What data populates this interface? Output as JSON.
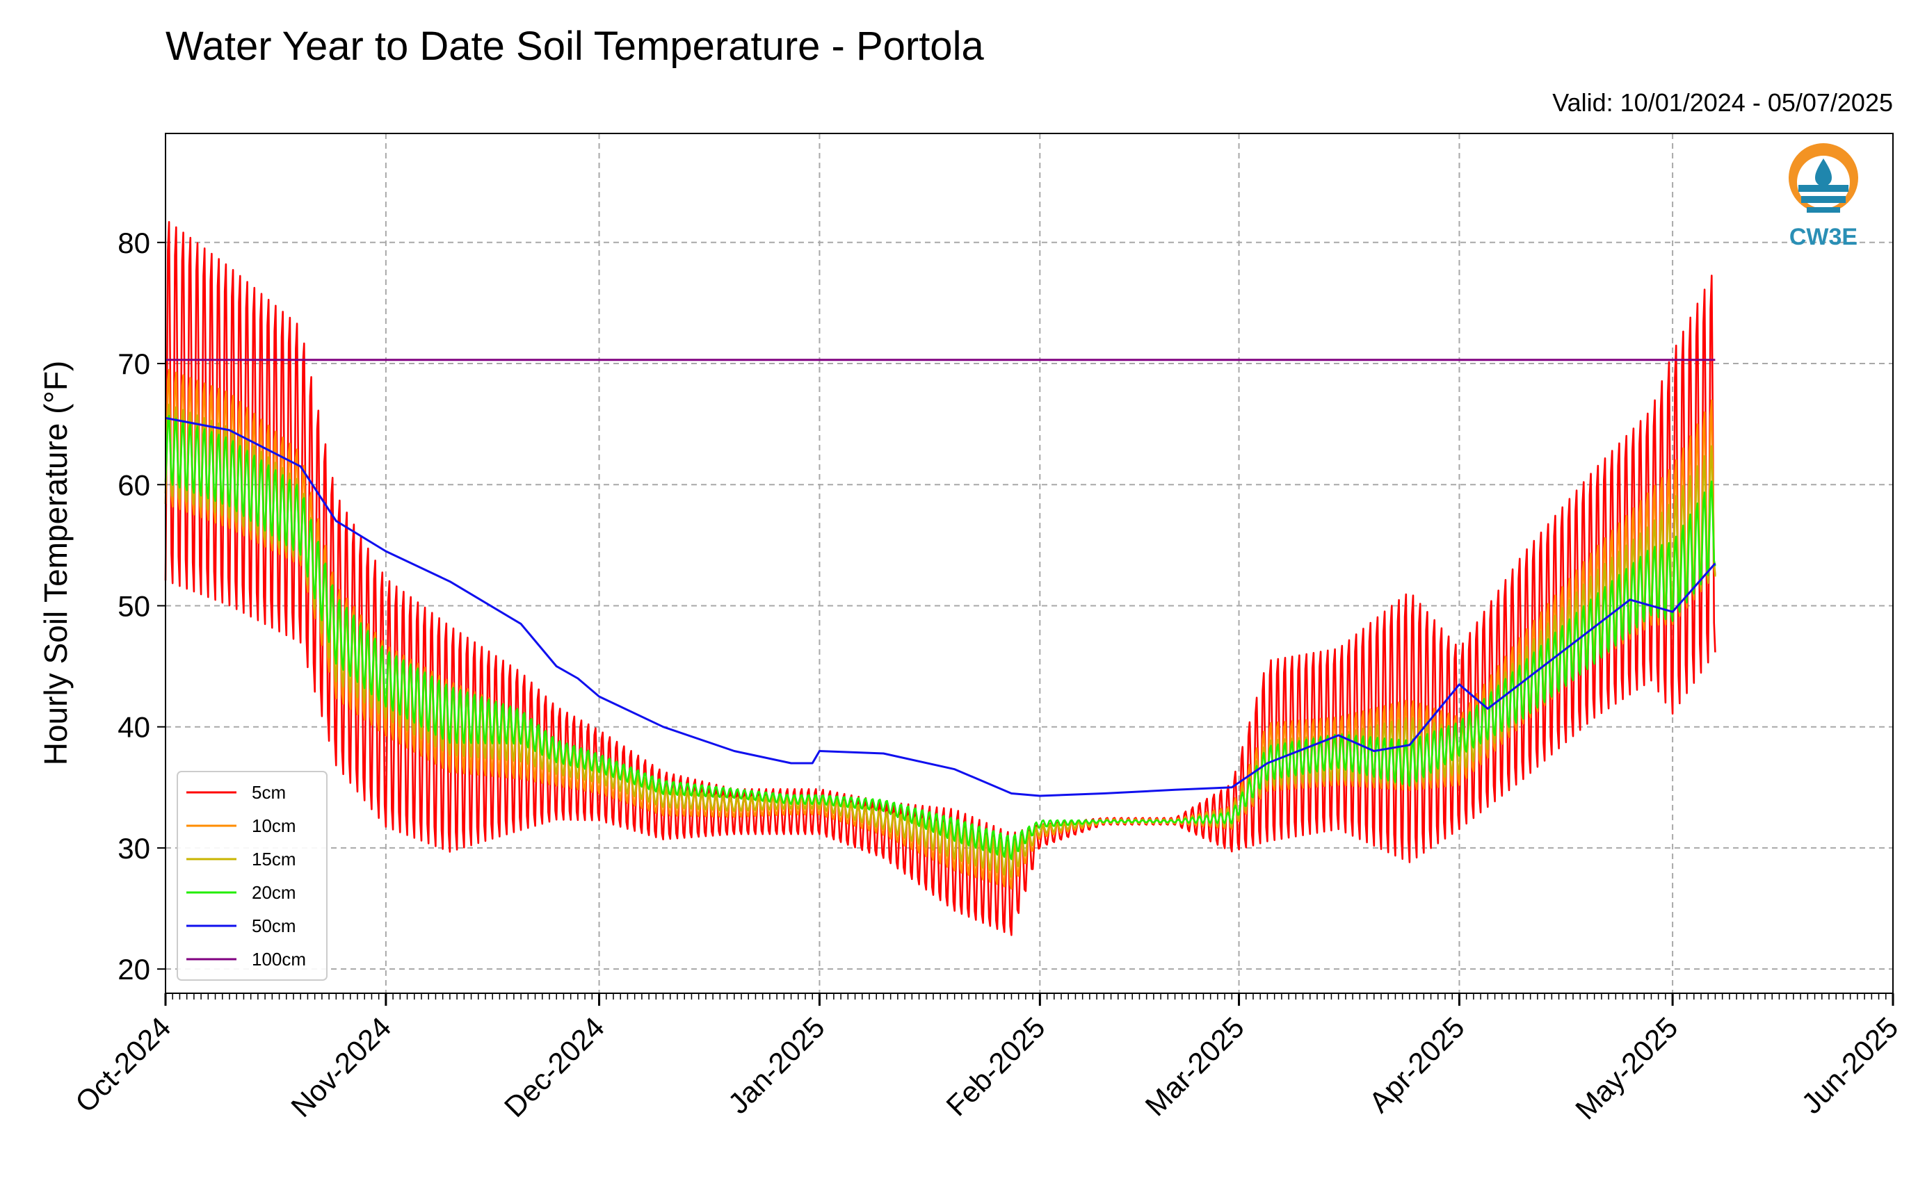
{
  "chart_data": {
    "type": "line",
    "title": "Water Year to Date Soil Temperature - Portola",
    "subtitle": "Valid: 10/01/2024 - 05/07/2025",
    "xlabel": "",
    "ylabel": "Hourly Soil Temperature (°F)",
    "ylim": [
      18,
      89
    ],
    "xlim": [
      "2024-10-01",
      "2025-06-01"
    ],
    "yticks": [
      20,
      30,
      40,
      50,
      60,
      70,
      80
    ],
    "xtick_labels": [
      "Oct-2024",
      "Nov-2024",
      "Dec-2024",
      "Jan-2025",
      "Feb-2025",
      "Mar-2025",
      "Apr-2025",
      "May-2025",
      "Jun-2025"
    ],
    "grid": true,
    "legend_position": "lower-left",
    "logo_text": "CW3E",
    "series": [
      {
        "name": "5cm",
        "color": "#ff0000",
        "kind": "shallow",
        "x": [
          "2024-10-01",
          "2024-10-10",
          "2024-10-20",
          "2024-10-25",
          "2024-11-01",
          "2024-11-10",
          "2024-11-20",
          "2024-11-25",
          "2024-12-01",
          "2024-12-10",
          "2024-12-20",
          "2024-12-28",
          "2025-01-01",
          "2025-01-10",
          "2025-01-20",
          "2025-01-28",
          "2025-02-01",
          "2025-02-10",
          "2025-02-20",
          "2025-02-28",
          "2025-03-05",
          "2025-03-15",
          "2025-03-25",
          "2025-04-01",
          "2025-04-10",
          "2025-04-20",
          "2025-04-28",
          "2025-05-01",
          "2025-05-07"
        ],
        "mid": [
          67,
          64,
          60,
          48,
          42,
          39,
          38,
          37,
          36,
          33.5,
          33,
          33,
          33,
          31.5,
          29,
          27,
          31,
          32.2,
          32.2,
          32.5,
          38,
          39,
          40,
          39,
          45,
          51,
          55,
          56,
          62
        ],
        "amp": [
          16,
          15,
          14,
          12,
          11,
          10,
          7,
          5,
          4,
          3,
          2,
          2,
          2,
          2.5,
          4.5,
          4.5,
          1,
          0.3,
          0.3,
          3,
          8,
          8,
          12,
          8,
          10,
          11,
          12,
          16,
          17
        ]
      },
      {
        "name": "10cm",
        "color": "#ff8c00",
        "kind": "shallow",
        "x": [
          "2024-10-01",
          "2024-10-10",
          "2024-10-20",
          "2024-10-25",
          "2024-11-01",
          "2024-11-10",
          "2024-11-20",
          "2024-11-25",
          "2024-12-01",
          "2024-12-10",
          "2024-12-20",
          "2024-12-28",
          "2025-01-01",
          "2025-01-10",
          "2025-01-20",
          "2025-01-28",
          "2025-02-01",
          "2025-02-10",
          "2025-02-20",
          "2025-02-28",
          "2025-03-05",
          "2025-03-15",
          "2025-03-25",
          "2025-04-01",
          "2025-04-10",
          "2025-04-20",
          "2025-04-28",
          "2025-05-01",
          "2025-05-07"
        ],
        "mid": [
          64,
          62,
          58,
          47,
          43,
          40,
          38.5,
          37,
          36,
          33.8,
          33.3,
          33.5,
          33.5,
          32,
          30,
          28.5,
          31.3,
          32.2,
          32.2,
          32.5,
          37.5,
          38,
          38.5,
          38,
          44,
          50,
          54,
          55,
          60
        ],
        "amp": [
          6,
          6,
          5,
          5,
          4,
          4,
          3,
          2,
          1.6,
          1.2,
          0.8,
          0.8,
          0.8,
          1,
          2,
          2,
          0.5,
          0.2,
          0.2,
          1,
          3,
          3,
          4,
          3,
          4,
          5,
          6,
          7,
          8
        ]
      },
      {
        "name": "15cm",
        "color": "#c8b400",
        "kind": "shallow",
        "x": [
          "2024-10-01",
          "2024-10-10",
          "2024-10-20",
          "2024-10-25",
          "2024-11-01",
          "2024-11-10",
          "2024-11-20",
          "2024-11-25",
          "2024-12-01",
          "2024-12-10",
          "2024-12-20",
          "2024-12-28",
          "2025-01-01",
          "2025-01-10",
          "2025-01-20",
          "2025-01-28",
          "2025-02-01",
          "2025-02-10",
          "2025-02-20",
          "2025-02-28",
          "2025-03-05",
          "2025-03-15",
          "2025-03-25",
          "2025-04-01",
          "2025-04-10",
          "2025-04-20",
          "2025-04-28",
          "2025-05-01",
          "2025-05-07"
        ],
        "mid": [
          63,
          61,
          57,
          47,
          43.5,
          40.5,
          39,
          37.5,
          36.5,
          34.2,
          33.6,
          33.8,
          33.8,
          32.3,
          30.5,
          29,
          31.5,
          32.2,
          32.2,
          32.5,
          37,
          37.5,
          38,
          38,
          43.5,
          49,
          53,
          54,
          58
        ],
        "amp": [
          4,
          4,
          3.5,
          3.5,
          3,
          3,
          2,
          1.5,
          1.2,
          0.9,
          0.6,
          0.6,
          0.6,
          0.8,
          1.5,
          1.5,
          0.4,
          0.1,
          0.1,
          0.8,
          2,
          2,
          3,
          2,
          3,
          4,
          4,
          5,
          6
        ]
      },
      {
        "name": "20cm",
        "color": "#22ee00",
        "kind": "shallow",
        "x": [
          "2024-10-01",
          "2024-10-10",
          "2024-10-20",
          "2024-10-25",
          "2024-11-01",
          "2024-11-10",
          "2024-11-20",
          "2024-11-25",
          "2024-12-01",
          "2024-12-10",
          "2024-12-20",
          "2024-12-28",
          "2025-01-01",
          "2025-01-10",
          "2025-01-20",
          "2025-01-28",
          "2025-02-01",
          "2025-02-10",
          "2025-02-20",
          "2025-02-28",
          "2025-03-05",
          "2025-03-15",
          "2025-03-25",
          "2025-04-01",
          "2025-04-10",
          "2025-04-20",
          "2025-04-28",
          "2025-05-01",
          "2025-05-07"
        ],
        "mid": [
          63,
          61,
          57,
          48,
          44,
          41,
          40,
          38,
          37,
          35,
          34.5,
          34,
          34,
          33.5,
          31.5,
          30,
          32,
          32.2,
          32.2,
          32.5,
          37,
          38,
          37,
          39,
          43,
          48,
          52,
          52,
          57
        ],
        "amp": [
          3,
          3,
          3,
          3,
          2.5,
          2.5,
          1.5,
          1,
          0.8,
          0.6,
          0.4,
          0.4,
          0.4,
          0.5,
          1,
          1,
          0.3,
          0.1,
          0.1,
          0.5,
          1.5,
          1.5,
          2,
          1.5,
          2.5,
          3,
          3,
          3.5,
          4
        ]
      },
      {
        "name": "50cm",
        "color": "#1010ee",
        "kind": "deep",
        "x": [
          "2024-10-01",
          "2024-10-10",
          "2024-10-15",
          "2024-10-20",
          "2024-10-25",
          "2024-11-01",
          "2024-11-10",
          "2024-11-20",
          "2024-11-25",
          "2024-11-28",
          "2024-12-01",
          "2024-12-10",
          "2024-12-20",
          "2024-12-28",
          "2024-12-31",
          "2025-01-01",
          "2025-01-10",
          "2025-01-20",
          "2025-01-28",
          "2025-02-01",
          "2025-02-10",
          "2025-02-20",
          "2025-02-28",
          "2025-03-05",
          "2025-03-15",
          "2025-03-20",
          "2025-03-25",
          "2025-04-01",
          "2025-04-05",
          "2025-04-15",
          "2025-04-25",
          "2025-05-01",
          "2025-05-07"
        ],
        "y": [
          65.5,
          64.5,
          63,
          61.5,
          57,
          54.5,
          52,
          48.5,
          45,
          44,
          42.5,
          40,
          38,
          37,
          37,
          38,
          37.8,
          36.5,
          34.5,
          34.3,
          34.5,
          34.8,
          35,
          37,
          39.3,
          38,
          38.5,
          43.5,
          41.5,
          46,
          50.5,
          49.5,
          53.5
        ]
      },
      {
        "name": "100cm",
        "color": "#800080",
        "kind": "flat",
        "x": [
          "2024-10-01",
          "2025-05-07"
        ],
        "y": [
          70.3,
          70.3
        ]
      }
    ]
  }
}
